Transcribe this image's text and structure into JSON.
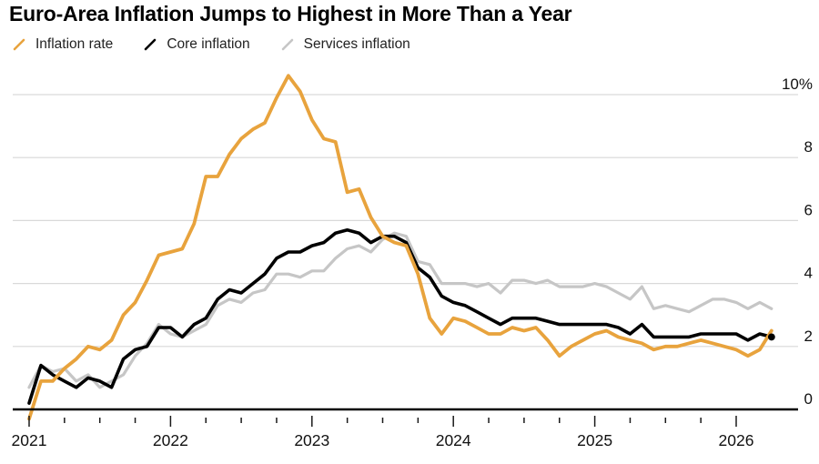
{
  "title": "Euro-Area Inflation Jumps to Highest in More Than a Year",
  "legend": {
    "items": [
      {
        "label": "Inflation rate",
        "color": "#E8A33D"
      },
      {
        "label": "Core inflation",
        "color": "#000000"
      },
      {
        "label": "Services inflation",
        "color": "#C6C6C6"
      }
    ]
  },
  "chart_data": {
    "type": "line",
    "title": "Euro-Area Inflation Jumps to Highest in More Than a Year",
    "legend_position": "top",
    "background_color": "#FFFFFF",
    "grid_color": "#D9D9D9",
    "axis_color": "#000000",
    "x_axis": {
      "frequency": "monthly",
      "start": "Dec 2020",
      "end": "Mar 2026",
      "tick_labels": [
        "2021",
        "2022",
        "2023",
        "2024",
        "2025",
        "2026"
      ],
      "minor_ticks": "quarterly"
    },
    "y_axis": {
      "position": "right",
      "ticks": [
        0,
        2,
        4,
        6,
        8,
        10
      ],
      "tick_labels": [
        "0",
        "2",
        "4",
        "6",
        "8",
        "10%"
      ],
      "range": [
        -0.5,
        10.8
      ],
      "grid": true
    },
    "series": [
      {
        "name": "Services inflation",
        "color": "#C6C6C6",
        "stroke_width": 3.2,
        "end_dot": false,
        "values": [
          0.7,
          1.4,
          1.2,
          1.3,
          0.9,
          1.1,
          0.7,
          0.9,
          1.1,
          1.7,
          2.1,
          2.7,
          2.4,
          2.3,
          2.5,
          2.7,
          3.3,
          3.5,
          3.4,
          3.7,
          3.8,
          4.3,
          4.3,
          4.2,
          4.4,
          4.4,
          4.8,
          5.1,
          5.2,
          5.0,
          5.4,
          5.6,
          5.5,
          4.7,
          4.6,
          4.0,
          4.0,
          4.0,
          3.9,
          4.0,
          3.7,
          4.1,
          4.1,
          4.0,
          4.1,
          3.9,
          3.9,
          3.9,
          4.0,
          3.9,
          3.7,
          3.5,
          3.9,
          3.2,
          3.3,
          3.2,
          3.1,
          3.3,
          3.5,
          3.5,
          3.4,
          3.2,
          3.4,
          3.2
        ]
      },
      {
        "name": "Core inflation",
        "color": "#000000",
        "stroke_width": 3.6,
        "end_dot": true,
        "values": [
          0.2,
          1.4,
          1.1,
          0.9,
          0.7,
          1.0,
          0.9,
          0.7,
          1.6,
          1.9,
          2.0,
          2.6,
          2.6,
          2.3,
          2.7,
          2.9,
          3.5,
          3.8,
          3.7,
          4.0,
          4.3,
          4.8,
          5.0,
          5.0,
          5.2,
          5.3,
          5.6,
          5.7,
          5.6,
          5.3,
          5.5,
          5.5,
          5.3,
          4.5,
          4.2,
          3.6,
          3.4,
          3.3,
          3.1,
          2.9,
          2.7,
          2.9,
          2.9,
          2.9,
          2.8,
          2.7,
          2.7,
          2.7,
          2.7,
          2.7,
          2.6,
          2.4,
          2.7,
          2.3,
          2.3,
          2.3,
          2.3,
          2.4,
          2.4,
          2.4,
          2.4,
          2.2,
          2.4,
          2.3
        ]
      },
      {
        "name": "Inflation rate",
        "color": "#E8A33D",
        "stroke_width": 3.8,
        "end_dot": false,
        "values": [
          -0.3,
          0.9,
          0.9,
          1.3,
          1.6,
          2.0,
          1.9,
          2.2,
          3.0,
          3.4,
          4.1,
          4.9,
          5.0,
          5.1,
          5.9,
          7.4,
          7.4,
          8.1,
          8.6,
          8.9,
          9.1,
          9.9,
          10.6,
          10.1,
          9.2,
          8.6,
          8.5,
          6.9,
          7.0,
          6.1,
          5.5,
          5.3,
          5.2,
          4.3,
          2.9,
          2.4,
          2.9,
          2.8,
          2.6,
          2.4,
          2.4,
          2.6,
          2.5,
          2.6,
          2.2,
          1.7,
          2.0,
          2.2,
          2.4,
          2.5,
          2.3,
          2.2,
          2.1,
          1.9,
          2.0,
          2.0,
          2.1,
          2.2,
          2.1,
          2.0,
          1.9,
          1.7,
          1.9,
          2.5
        ]
      }
    ]
  }
}
